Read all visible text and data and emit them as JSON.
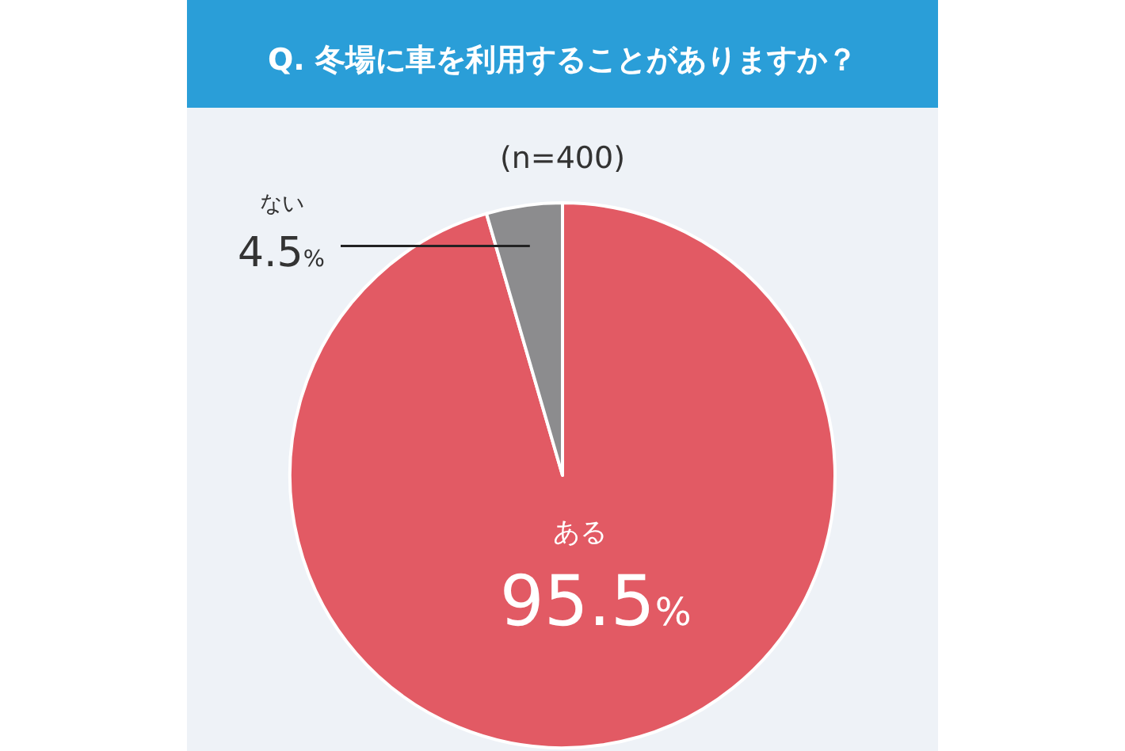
{
  "chart_data": {
    "type": "pie",
    "title": "Q. 冬場に車を利用することがありますか？",
    "subtitle": "(n=400)",
    "categories": [
      "ある",
      "ない"
    ],
    "values": [
      95.5,
      4.5
    ],
    "colors": [
      "#e25a64",
      "#8c8c8e"
    ],
    "value_labels": [
      "95.5%",
      "4.5%"
    ]
  }
}
